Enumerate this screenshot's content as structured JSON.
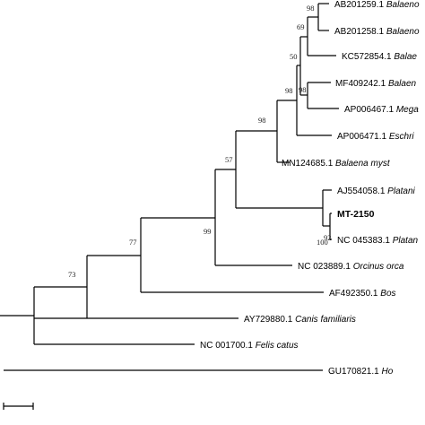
{
  "tree": {
    "taxa": [
      {
        "id": "ab201259",
        "accession": "AB201259.1",
        "species": "Balaeno"
      },
      {
        "id": "ab201258",
        "accession": "AB201258.1",
        "species": "Balaeno"
      },
      {
        "id": "kc572854",
        "accession": "KC572854.1",
        "species": "Balae"
      },
      {
        "id": "mf409242",
        "accession": "MF409242.1",
        "species": "Balaen"
      },
      {
        "id": "ap006467",
        "accession": "AP006467.1",
        "species": "Mega"
      },
      {
        "id": "ap006471",
        "accession": "AP006471.1",
        "species": "Eschri"
      },
      {
        "id": "mn124685",
        "accession": "MN124685.1",
        "species": "Balaena myst"
      },
      {
        "id": "aj554058",
        "accession": "AJ554058.1",
        "species": "Platani"
      },
      {
        "id": "mt2150",
        "accession": "MT-2150",
        "species": ""
      },
      {
        "id": "nc045383",
        "accession": "NC 045383.1",
        "species": "Platan"
      },
      {
        "id": "nc023889",
        "accession": "NC 023889.1",
        "species": "Orcinus orca"
      },
      {
        "id": "af492350",
        "accession": "AF492350.1",
        "species": "Bos"
      },
      {
        "id": "ay729880",
        "accession": "AY729880.1",
        "species": "Canis familiaris"
      },
      {
        "id": "nc001700",
        "accession": "NC 001700.1",
        "species": "Felis catus"
      },
      {
        "id": "gu170821",
        "accession": "GU170821.1",
        "species": "Ho"
      }
    ],
    "bootstrap": [
      {
        "id": "b98a",
        "value": "98"
      },
      {
        "id": "b69",
        "value": "69"
      },
      {
        "id": "b50",
        "value": "50"
      },
      {
        "id": "b98b",
        "value": "98"
      },
      {
        "id": "b98c",
        "value": "98"
      },
      {
        "id": "b98d",
        "value": "98"
      },
      {
        "id": "b57",
        "value": "57"
      },
      {
        "id": "b100",
        "value": "100"
      },
      {
        "id": "b92",
        "value": "92"
      },
      {
        "id": "b99",
        "value": "99"
      },
      {
        "id": "b77",
        "value": "77"
      },
      {
        "id": "b73",
        "value": "73"
      }
    ]
  }
}
